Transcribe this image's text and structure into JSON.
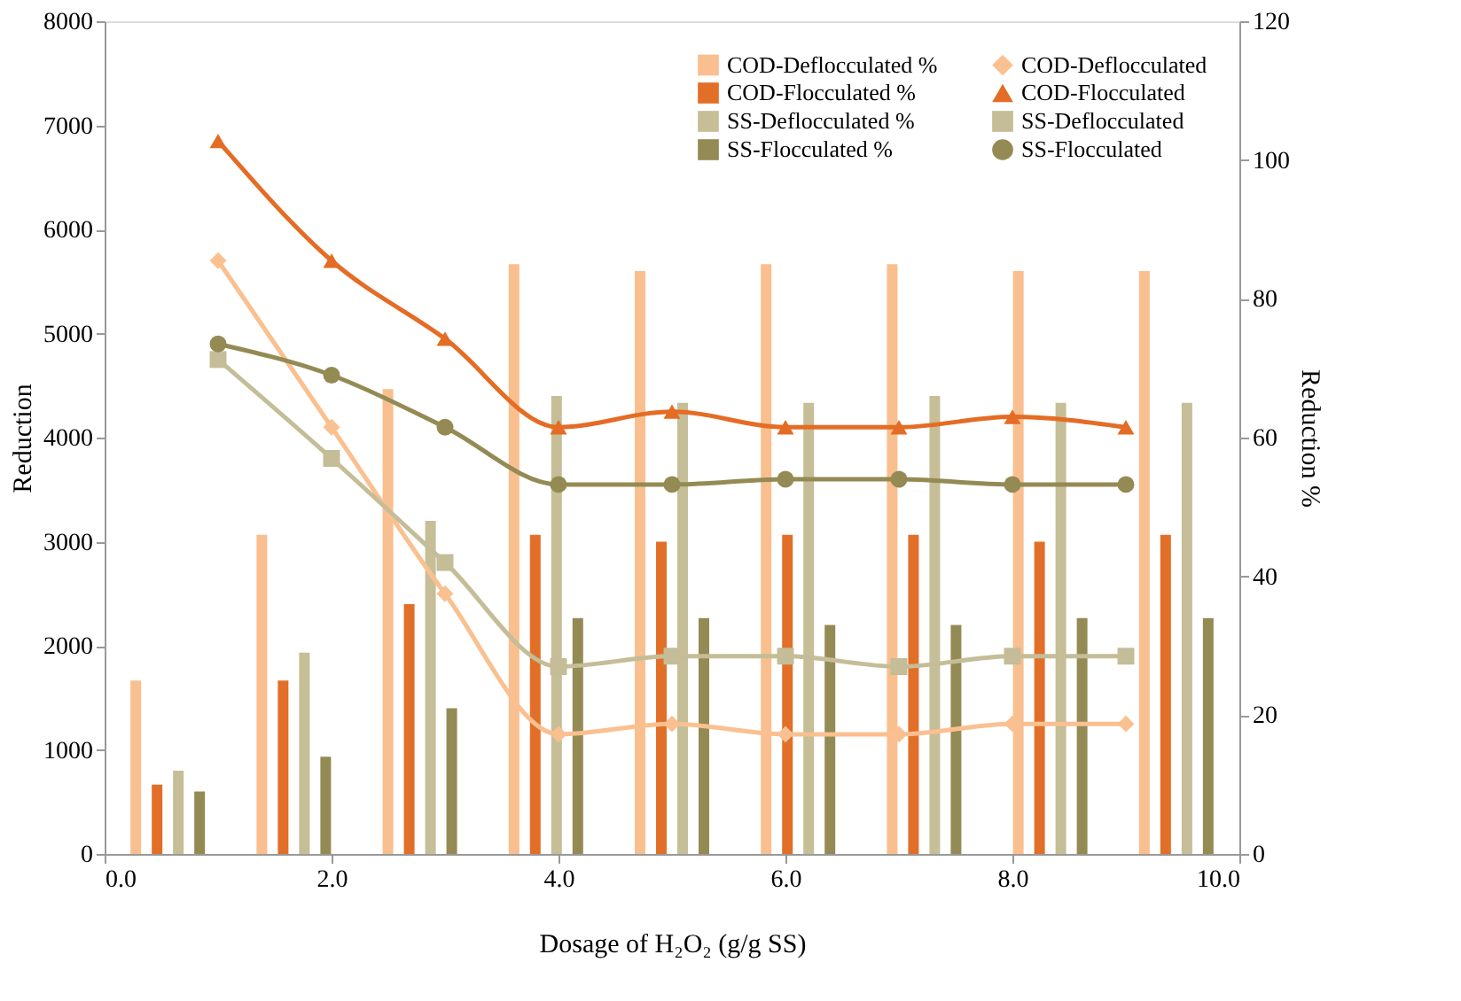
{
  "chart_data": {
    "type": "line",
    "xlabel": "Dosage of H₂O₂ (g/g SS)",
    "ylabel": "Reduction",
    "y2label": "Reduction %",
    "xlim": [
      0,
      10
    ],
    "xticks": [
      {
        "value": 0,
        "label": "0.0"
      },
      {
        "value": 2,
        "label": "2.0"
      },
      {
        "value": 4,
        "label": "4.0"
      },
      {
        "value": 6,
        "label": "6.0"
      },
      {
        "value": 8,
        "label": "8.0"
      },
      {
        "value": 10,
        "label": "10.0"
      }
    ],
    "ylim": [
      0,
      8000
    ],
    "yticks": [
      0,
      1000,
      2000,
      3000,
      4000,
      5000,
      6000,
      7000,
      8000
    ],
    "y2lim": [
      0,
      120
    ],
    "y2ticks": [
      0,
      20,
      40,
      60,
      80,
      100,
      120
    ],
    "grid": false,
    "legend": "top right",
    "series": [
      {
        "name": "COD-Deflocculated %",
        "type": "bar",
        "axis": "y2",
        "color": "#f9bf8f",
        "x": [
          0.556,
          1.667,
          2.778,
          3.889,
          5,
          6.111,
          7.222,
          8.333,
          9.444
        ],
        "values": [
          25,
          46,
          67,
          85,
          84,
          85,
          85,
          84,
          84
        ]
      },
      {
        "name": "COD-Flocculated %",
        "type": "bar",
        "axis": "y2",
        "color": "#e26f28",
        "x": [
          0.556,
          1.667,
          2.778,
          3.889,
          5,
          6.111,
          7.222,
          8.333,
          9.444
        ],
        "values": [
          10,
          25,
          36,
          46,
          45,
          46,
          46,
          45,
          46
        ]
      },
      {
        "name": "SS-Deflocculated %",
        "type": "bar",
        "axis": "y2",
        "color": "#c5be97",
        "x": [
          0.556,
          1.667,
          2.778,
          3.889,
          5,
          6.111,
          7.222,
          8.333,
          9.444
        ],
        "values": [
          12,
          29,
          48,
          66,
          65,
          65,
          66,
          65,
          65
        ]
      },
      {
        "name": "SS-Flocculated %",
        "type": "bar",
        "axis": "y2",
        "color": "#948a54",
        "x": [
          0.556,
          1.667,
          2.778,
          3.889,
          5,
          6.111,
          7.222,
          8.333,
          9.444
        ],
        "values": [
          9,
          14,
          21,
          34,
          34,
          33,
          33,
          34,
          34
        ]
      },
      {
        "name": "COD-Deflocculated",
        "marker": "diamond",
        "color": "#fac090",
        "x": [
          1,
          2,
          3,
          4,
          5,
          6,
          7,
          8,
          9
        ],
        "values": [
          5700,
          4100,
          2500,
          1150,
          1250,
          1150,
          1150,
          1250,
          1250
        ]
      },
      {
        "name": "COD-Flocculated",
        "marker": "triangle",
        "color": "#e46c24",
        "x": [
          1,
          2,
          3,
          4,
          5,
          6,
          7,
          8,
          9
        ],
        "values": [
          6850,
          5700,
          4950,
          4100,
          4250,
          4100,
          4100,
          4200,
          4100
        ]
      },
      {
        "name": "SS-Deflocculated",
        "marker": "square",
        "color": "#c4bd97",
        "x": [
          1,
          2,
          3,
          4,
          5,
          6,
          7,
          8,
          9
        ],
        "values": [
          4750,
          3800,
          2800,
          1800,
          1900,
          1900,
          1800,
          1900,
          1900
        ]
      },
      {
        "name": "SS-Flocculated",
        "marker": "circle",
        "color": "#948a54",
        "x": [
          1,
          2,
          3,
          4,
          5,
          6,
          7,
          8,
          9
        ],
        "values": [
          4900,
          4600,
          4100,
          3550,
          3550,
          3600,
          3600,
          3550,
          3550
        ]
      }
    ]
  }
}
